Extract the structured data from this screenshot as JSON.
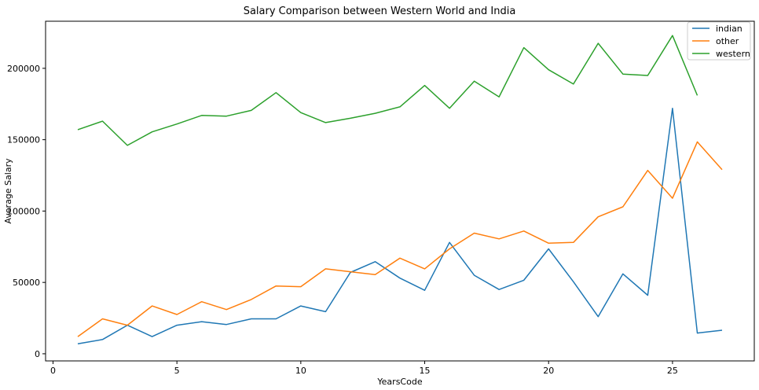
{
  "chart_data": {
    "type": "line",
    "title": "Salary Comparison between Western World and India",
    "xlabel": "YearsCode",
    "ylabel": "Average Salary",
    "xlim": [
      -0.3,
      28.3
    ],
    "ylim": [
      -5000,
      233000
    ],
    "xticks": [
      0,
      5,
      10,
      15,
      20,
      25
    ],
    "yticks": [
      0,
      50000,
      100000,
      150000,
      200000
    ],
    "legend_position": "top-right",
    "x": [
      1,
      2,
      3,
      4,
      5,
      6,
      7,
      8,
      9,
      10,
      11,
      12,
      13,
      14,
      15,
      16,
      17,
      18,
      19,
      20,
      21,
      22,
      23,
      24,
      25,
      26,
      27
    ],
    "series": [
      {
        "name": "indian",
        "color": "#1f77b4",
        "values": [
          7000,
          10000,
          20000,
          12000,
          20000,
          22500,
          20500,
          24500,
          24500,
          33500,
          29500,
          57000,
          64500,
          53000,
          44500,
          78000,
          55000,
          45000,
          51500,
          73500,
          50500,
          26000,
          56000,
          41000,
          172000,
          14500,
          16500
        ]
      },
      {
        "name": "other",
        "color": "#ff7f0e",
        "values": [
          12000,
          24500,
          20000,
          33500,
          27500,
          36500,
          31000,
          38000,
          47500,
          47000,
          59500,
          57500,
          55500,
          67000,
          59500,
          73500,
          84500,
          80500,
          86000,
          77500,
          78000,
          96000,
          103000,
          128500,
          109000,
          148500,
          129000
        ]
      },
      {
        "name": "western",
        "color": "#2ca02c",
        "values": [
          157000,
          163000,
          146000,
          155500,
          161000,
          167000,
          166500,
          170500,
          183000,
          169000,
          162000,
          165000,
          168500,
          173000,
          188000,
          172000,
          191000,
          180000,
          214500,
          199000,
          189000,
          217500,
          196000,
          195000,
          223000,
          181000,
          null
        ]
      }
    ]
  }
}
